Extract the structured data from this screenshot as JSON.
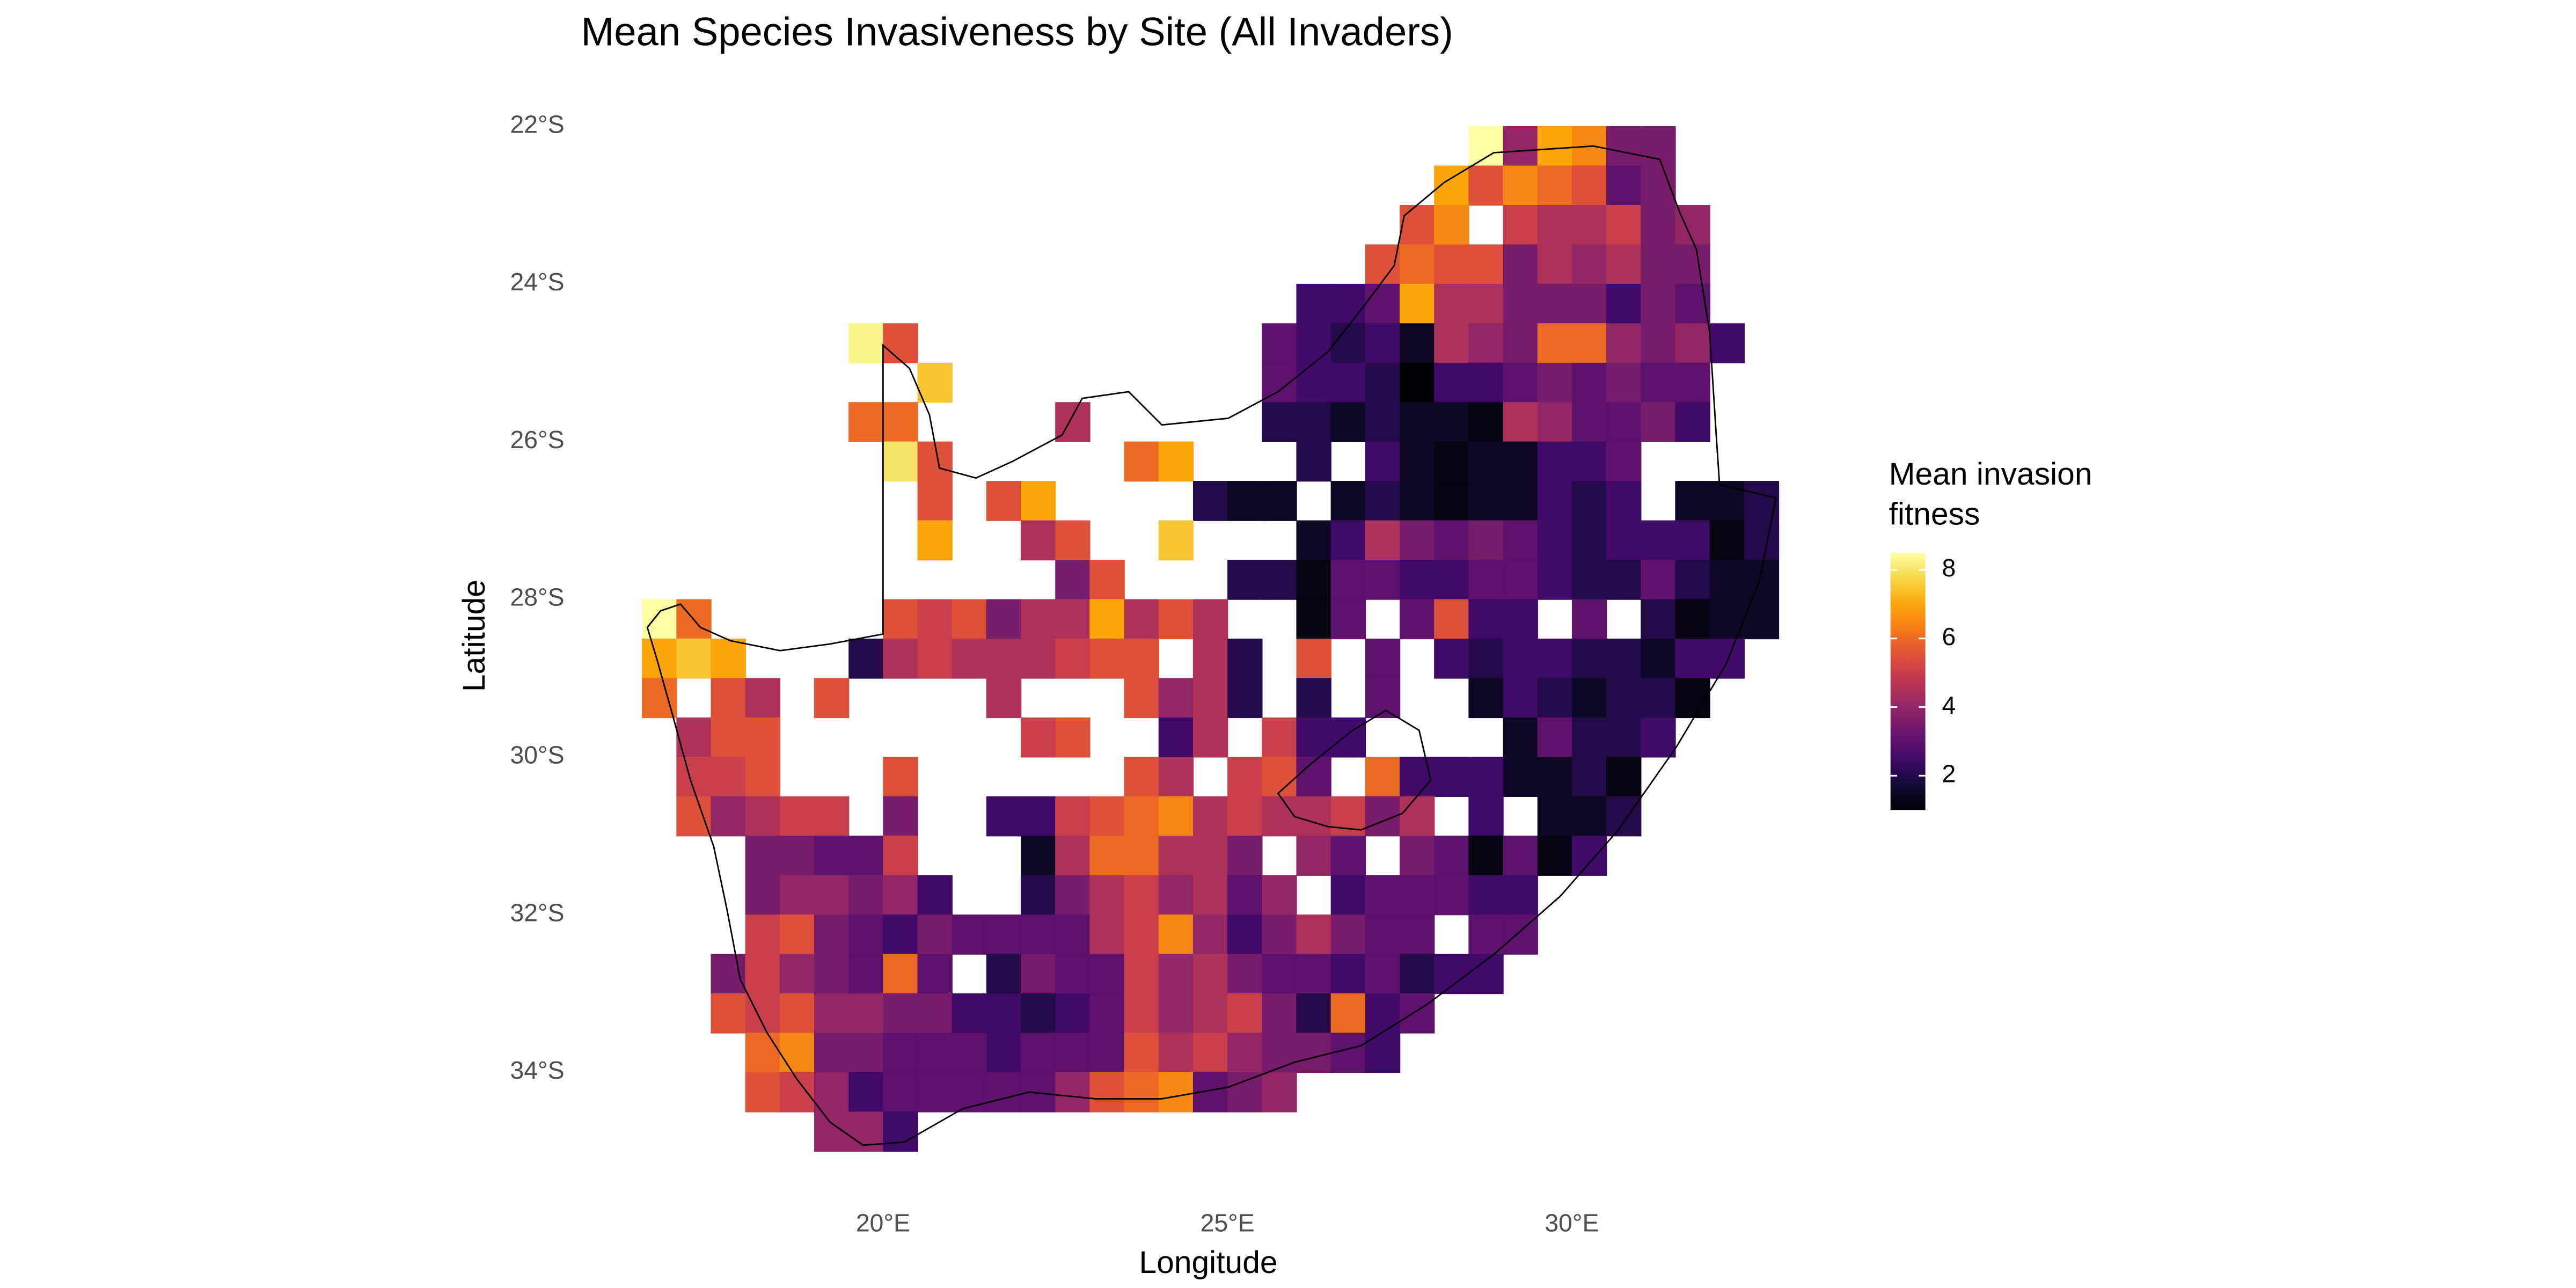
{
  "chart_data": {
    "type": "heatmap",
    "title": "Mean Species Invasiveness by Site (All Invaders)",
    "x_label": "Longitude",
    "y_label": "Latitude",
    "legend_title": "Mean invasion fitness",
    "colormap": "inferno",
    "clim": [
      1,
      8.5
    ],
    "cticks": [
      2,
      4,
      6,
      8
    ],
    "xlim": [
      16.5,
      33
    ],
    "ylim": [
      -35,
      -22
    ],
    "xticks": [
      {
        "value": 20,
        "label": "20°E"
      },
      {
        "value": 25,
        "label": "25°E"
      },
      {
        "value": 30,
        "label": "30°E"
      }
    ],
    "yticks": [
      {
        "value": -22,
        "label": "22°S"
      },
      {
        "value": -24,
        "label": "24°S"
      },
      {
        "value": -26,
        "label": "26°S"
      },
      {
        "value": -28,
        "label": "28°S"
      },
      {
        "value": -30,
        "label": "30°S"
      },
      {
        "value": -32,
        "label": "32°S"
      },
      {
        "value": -34,
        "label": "34°S"
      }
    ],
    "x": [
      16.75,
      17.25,
      17.75,
      18.25,
      18.75,
      19.25,
      19.75,
      20.25,
      20.75,
      21.25,
      21.75,
      22.25,
      22.75,
      23.25,
      23.75,
      24.25,
      24.75,
      25.25,
      25.75,
      26.25,
      26.75,
      27.25,
      27.75,
      28.25,
      28.75,
      29.25,
      29.75,
      30.25,
      30.75,
      31.25,
      31.75,
      32.25,
      32.75
    ],
    "y": [
      -22.25,
      -22.75,
      -23.25,
      -23.75,
      -24.25,
      -24.75,
      -25.25,
      -25.75,
      -26.25,
      -26.75,
      -27.25,
      -27.75,
      -28.25,
      -28.75,
      -29.25,
      -29.75,
      -30.25,
      -30.75,
      -31.25,
      -31.75,
      -32.25,
      -32.75,
      -33.25,
      -33.75,
      -34.25,
      -34.75
    ],
    "values": [
      [
        null,
        null,
        null,
        null,
        null,
        null,
        null,
        null,
        null,
        null,
        null,
        null,
        null,
        null,
        null,
        null,
        null,
        null,
        null,
        null,
        null,
        null,
        null,
        null,
        8.5,
        4,
        7,
        6.5,
        3.5,
        3.5,
        null,
        null,
        null
      ],
      [
        null,
        null,
        null,
        null,
        null,
        null,
        null,
        null,
        null,
        null,
        null,
        null,
        null,
        null,
        null,
        null,
        null,
        null,
        null,
        null,
        null,
        null,
        null,
        7,
        5.5,
        6.5,
        6,
        5.5,
        3,
        3.5,
        null,
        null,
        null
      ],
      [
        null,
        null,
        null,
        null,
        null,
        null,
        null,
        null,
        null,
        null,
        null,
        null,
        null,
        null,
        null,
        null,
        null,
        null,
        null,
        null,
        null,
        null,
        5.5,
        6.5,
        null,
        5,
        4.5,
        4.5,
        5,
        3.5,
        4,
        null,
        null
      ],
      [
        null,
        null,
        null,
        null,
        null,
        null,
        null,
        null,
        null,
        null,
        null,
        null,
        null,
        null,
        null,
        null,
        null,
        null,
        null,
        null,
        null,
        5.5,
        6,
        5.5,
        5.5,
        3.5,
        4.5,
        4,
        4.5,
        3.5,
        3.5,
        null,
        null
      ],
      [
        null,
        null,
        null,
        null,
        null,
        null,
        null,
        null,
        null,
        null,
        null,
        null,
        null,
        null,
        null,
        null,
        null,
        null,
        null,
        2.5,
        2.5,
        3,
        7,
        4.5,
        4.5,
        3.5,
        3.5,
        3.5,
        2.5,
        3.5,
        3,
        null,
        null
      ],
      [
        null,
        null,
        null,
        null,
        null,
        null,
        8.3,
        5.5,
        null,
        null,
        null,
        null,
        null,
        null,
        null,
        null,
        null,
        null,
        3,
        2.5,
        2,
        2.5,
        1.5,
        4.5,
        4,
        3.5,
        6,
        6,
        4,
        3.5,
        4,
        2.5,
        null
      ],
      [
        null,
        null,
        null,
        null,
        null,
        null,
        null,
        null,
        7.5,
        null,
        null,
        null,
        null,
        null,
        null,
        null,
        null,
        null,
        3,
        2.5,
        2.5,
        2,
        1,
        2.5,
        2.5,
        3,
        3.5,
        3,
        3.5,
        3,
        3,
        null,
        null
      ],
      [
        null,
        null,
        null,
        null,
        null,
        null,
        6,
        6,
        null,
        null,
        null,
        null,
        4.5,
        null,
        null,
        null,
        null,
        null,
        2,
        2,
        1.5,
        2,
        1.5,
        1.5,
        1.2,
        4.5,
        4,
        3,
        3,
        3.5,
        2.5,
        null,
        null
      ],
      [
        null,
        null,
        null,
        null,
        null,
        null,
        null,
        8,
        5.5,
        null,
        null,
        null,
        null,
        null,
        6,
        7,
        null,
        null,
        null,
        2,
        null,
        2.5,
        1.5,
        1.2,
        1.5,
        1.5,
        2.5,
        2.5,
        3,
        null,
        null,
        null,
        null
      ],
      [
        null,
        null,
        null,
        null,
        null,
        null,
        null,
        null,
        5.5,
        null,
        5.5,
        7,
        null,
        null,
        null,
        null,
        2,
        1.5,
        1.5,
        null,
        1.5,
        2,
        1.5,
        1.2,
        1.5,
        1.5,
        2.5,
        2,
        2.5,
        null,
        1.5,
        1.5,
        2
      ],
      [
        null,
        null,
        null,
        null,
        null,
        null,
        null,
        null,
        7,
        null,
        null,
        4.5,
        5.5,
        null,
        null,
        7.5,
        null,
        null,
        null,
        1.5,
        2.5,
        4.5,
        3.5,
        3,
        3.5,
        3,
        2.5,
        2,
        2.5,
        2.5,
        2.5,
        1.2,
        2
      ],
      [
        null,
        null,
        null,
        null,
        null,
        null,
        null,
        null,
        null,
        null,
        null,
        null,
        3.5,
        5.5,
        null,
        null,
        null,
        2,
        2,
        1.2,
        3,
        3,
        2.5,
        2.5,
        3,
        3,
        2.5,
        2,
        2,
        3,
        2,
        1.5,
        1.5
      ],
      [
        8.5,
        6,
        null,
        null,
        null,
        null,
        null,
        5.5,
        5,
        5.5,
        3.5,
        4.5,
        4.5,
        7,
        4.5,
        5.5,
        4.5,
        null,
        null,
        1.2,
        3,
        null,
        3,
        5.5,
        2.5,
        2.5,
        null,
        3,
        null,
        2,
        1.2,
        1.5,
        1.5
      ],
      [
        7,
        7.5,
        7,
        null,
        null,
        null,
        2,
        4.5,
        5,
        4.5,
        4.5,
        4.5,
        5,
        5.5,
        5.5,
        null,
        4.5,
        2,
        null,
        5.5,
        null,
        3,
        null,
        2.5,
        2,
        2.5,
        2.5,
        2,
        2,
        1.5,
        2.5,
        2.5,
        null
      ],
      [
        6,
        null,
        5.5,
        4.5,
        null,
        5.5,
        null,
        null,
        null,
        null,
        4.5,
        null,
        null,
        null,
        5.5,
        4,
        4.5,
        2,
        null,
        2,
        null,
        3,
        null,
        null,
        1.5,
        2.5,
        2,
        1.5,
        2,
        2,
        1.2,
        null,
        null
      ],
      [
        null,
        4.5,
        5.5,
        5.5,
        null,
        null,
        null,
        null,
        null,
        null,
        null,
        5,
        5.5,
        null,
        null,
        2.5,
        4.5,
        null,
        5,
        2.5,
        2.5,
        null,
        null,
        null,
        null,
        1.5,
        3,
        2,
        2,
        2.5,
        null,
        null,
        null
      ],
      [
        null,
        5,
        5,
        5.5,
        null,
        null,
        null,
        5.5,
        null,
        null,
        null,
        null,
        null,
        null,
        5.5,
        4.5,
        null,
        5,
        5.5,
        3,
        null,
        6,
        2.5,
        2.5,
        2.5,
        1.5,
        1.5,
        2,
        1.2,
        null,
        null,
        null,
        null
      ],
      [
        null,
        5.5,
        4,
        4.5,
        5,
        5,
        null,
        3.5,
        null,
        null,
        2.5,
        2.5,
        5,
        5.5,
        6,
        6.5,
        4.5,
        5,
        4.5,
        4.5,
        5,
        3.5,
        4.5,
        null,
        2.5,
        null,
        1.5,
        1.5,
        2,
        null,
        null,
        null,
        null
      ],
      [
        null,
        null,
        null,
        3.5,
        3.5,
        3,
        3,
        5,
        null,
        null,
        null,
        1.5,
        4.5,
        6,
        6,
        4.5,
        4.5,
        3.5,
        null,
        4,
        3,
        null,
        3.5,
        3,
        1.2,
        3,
        1.2,
        2.5,
        null,
        null,
        null,
        null,
        null
      ],
      [
        null,
        null,
        null,
        3.5,
        4,
        4,
        3.5,
        4,
        2.5,
        null,
        null,
        2,
        3.5,
        4.5,
        5,
        4,
        4.5,
        3,
        4,
        null,
        2.5,
        3,
        3,
        3,
        2.5,
        2.5,
        null,
        null,
        null,
        null,
        null,
        null,
        null
      ],
      [
        null,
        null,
        null,
        5,
        5.5,
        3.5,
        3,
        2.5,
        3.5,
        3,
        3,
        3,
        3,
        4.5,
        5,
        6.5,
        4,
        2.5,
        3.5,
        4.5,
        3.5,
        3,
        3,
        null,
        3,
        3,
        null,
        null,
        null,
        null,
        null,
        null,
        null
      ],
      [
        null,
        null,
        3.5,
        5,
        4,
        3.5,
        3,
        6,
        3,
        null,
        2,
        3.5,
        3,
        3,
        5,
        4,
        4.5,
        3.5,
        3,
        3,
        2.5,
        3,
        2,
        2.5,
        2.5,
        null,
        null,
        null,
        null,
        null,
        null,
        null,
        null
      ],
      [
        null,
        null,
        5.5,
        5,
        5.5,
        4,
        4,
        3.5,
        3.5,
        2.5,
        2.5,
        2,
        2.5,
        3,
        5,
        4,
        4.5,
        5,
        3.5,
        2,
        6,
        2.5,
        3,
        null,
        null,
        null,
        null,
        null,
        null,
        null,
        null,
        null,
        null
      ],
      [
        null,
        null,
        null,
        6,
        6.5,
        3.5,
        3.5,
        3,
        3,
        3,
        2.5,
        3,
        3,
        3,
        5.5,
        4.5,
        5,
        4,
        3.5,
        3.5,
        3,
        2.5,
        null,
        null,
        null,
        null,
        null,
        null,
        null,
        null,
        null,
        null,
        null
      ],
      [
        null,
        null,
        null,
        5.5,
        5,
        4,
        2.5,
        3,
        3,
        3,
        3,
        3,
        4,
        5.5,
        6,
        6.5,
        3,
        3.5,
        4,
        null,
        null,
        null,
        null,
        null,
        null,
        null,
        null,
        null,
        null,
        null,
        null,
        null,
        null
      ],
      [
        null,
        null,
        null,
        null,
        null,
        4,
        4,
        2.5,
        null,
        null,
        null,
        null,
        null,
        null,
        null,
        null,
        null,
        null,
        null,
        null,
        null,
        null,
        null,
        null,
        null,
        null,
        null,
        null,
        null,
        null,
        null,
        null,
        null
      ]
    ]
  }
}
